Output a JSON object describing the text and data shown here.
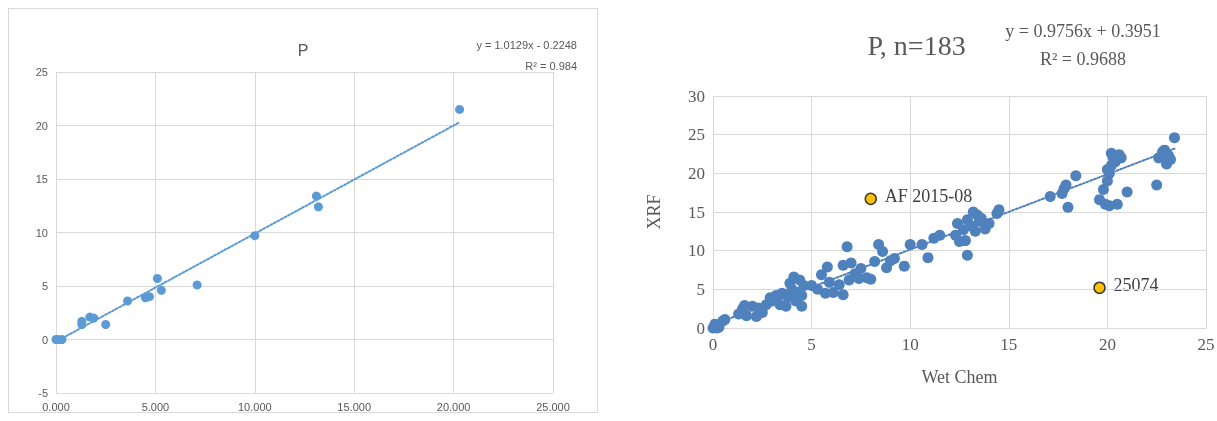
{
  "chart_data": [
    {
      "type": "scatter",
      "title": "P",
      "annotations": [
        "y = 1.0129x - 0.2248",
        "R² = 0.984"
      ],
      "xlim": [
        0,
        25
      ],
      "xticks": [
        {
          "value": 0,
          "label": "0.000"
        },
        {
          "value": 5,
          "label": "5.000"
        },
        {
          "value": 10,
          "label": "10.000"
        },
        {
          "value": 15,
          "label": "15.000"
        },
        {
          "value": 20,
          "label": "20.000"
        },
        {
          "value": 25,
          "label": "25.000"
        }
      ],
      "ylim": [
        -5,
        25
      ],
      "yticks": [
        -5,
        0,
        5,
        10,
        15,
        20,
        25
      ],
      "grid": true,
      "marker": "circle",
      "series": [
        {
          "color": "#5b9bd5",
          "x": [
            0,
            0.1,
            0.3,
            1.3,
            1.3,
            1.7,
            1.9,
            2.5,
            3.6,
            4.5,
            4.7,
            5.1,
            5.3,
            7.1,
            10,
            13.1,
            13.2,
            20.3
          ],
          "values": [
            0,
            0,
            0,
            1.7,
            1.4,
            2.1,
            2.0,
            1.4,
            3.6,
            3.9,
            4.0,
            5.7,
            4.6,
            5.1,
            9.7,
            13.4,
            12.4,
            21.5
          ]
        },
        {
          "type": "line",
          "color": "#5b9bd5",
          "line_style": "dotted",
          "marker": "none",
          "x": [
            0,
            20.3
          ],
          "values": [
            -0.2,
            20.3
          ]
        }
      ]
    },
    {
      "type": "scatter",
      "title": "P, n=183",
      "xlabel": "Wet Chem",
      "ylabel": "XRF",
      "annotations": [
        "y = 0.9756x + 0.3951",
        "R² = 0.9688",
        {
          "text": "AF 2015-08",
          "x": 8,
          "y": 16.7
        },
        {
          "text": "25074",
          "x": 19.6,
          "y": 5.2
        }
      ],
      "xlim": [
        0,
        25
      ],
      "xticks": [
        0,
        5,
        10,
        15,
        20,
        25
      ],
      "ylim": [
        0,
        30
      ],
      "yticks": [
        0,
        5,
        10,
        15,
        20,
        25,
        30
      ],
      "grid": true,
      "marker": "circle",
      "series": [
        {
          "color": "#4f81bd",
          "x": [
            0,
            0.2,
            0.3,
            0.1,
            0.5,
            0.6,
            1.3,
            1.5,
            1.6,
            2.0,
            2.2,
            2.3,
            1.7,
            2.5,
            2.7,
            3.0,
            3.2,
            3.4,
            3.5,
            3.7,
            3.8,
            4.0,
            4.1,
            4.2,
            4.3,
            4.4,
            4.5,
            4.6,
            4.5,
            3.9,
            2.9,
            5.0,
            5.3,
            5.5,
            5.7,
            5.8,
            5.9,
            6.1,
            6.4,
            6.6,
            6.6,
            6.8,
            6.9,
            7.0,
            7.2,
            7.4,
            7.5,
            7.8,
            8.0,
            8.2,
            8.4,
            8.6,
            8.8,
            9.0,
            9.2,
            9.7,
            10.0,
            10.6,
            10.9,
            11.2,
            11.5,
            12.3,
            12.4,
            12.5,
            12.7,
            12.9,
            12.9,
            13.1,
            13.3,
            13.4,
            13.5,
            13.6,
            13.8,
            14.0,
            14.4,
            14.5,
            12.8,
            13.2,
            17.1,
            17.7,
            17.8,
            17.9,
            18.0,
            18.4,
            19.6,
            19.8,
            19.9,
            20.0,
            20.1,
            20.2,
            20.3,
            20.2,
            20.4,
            20.6,
            20.7,
            20.5,
            20.0,
            21.0,
            20.1,
            22.5,
            22.6,
            22.8,
            23.0,
            23.1,
            23.2,
            23.4,
            22.9
          ],
          "values": [
            0,
            0,
            0.1,
            0.5,
            0.9,
            1.1,
            1.8,
            2.5,
            2.9,
            2.8,
            1.5,
            2.6,
            1.6,
            2.0,
            3.0,
            3.5,
            4.2,
            3.0,
            4.5,
            2.8,
            4.0,
            5.0,
            6.6,
            3.5,
            4.6,
            6.2,
            4.2,
            5.5,
            2.8,
            5.8,
            3.9,
            5.5,
            5.0,
            6.9,
            4.5,
            7.9,
            5.9,
            4.6,
            5.6,
            4.3,
            8.1,
            10.5,
            6.2,
            8.4,
            7.0,
            6.4,
            7.7,
            6.5,
            6.3,
            8.6,
            10.8,
            9.9,
            7.8,
            8.7,
            9.0,
            8.0,
            10.8,
            10.8,
            9.1,
            11.6,
            12.0,
            12.0,
            13.5,
            11.2,
            12.7,
            9.4,
            14.0,
            13.2,
            12.5,
            14.6,
            13.8,
            14.2,
            12.8,
            13.5,
            14.8,
            15.3,
            11.3,
            15.0,
            17.0,
            17.4,
            18.0,
            18.5,
            15.6,
            19.7,
            16.6,
            17.9,
            16.0,
            19.0,
            20.0,
            21.0,
            22.0,
            22.6,
            21.5,
            22.4,
            22.0,
            16.0,
            20.5,
            17.6,
            15.8,
            18.5,
            22.0,
            22.8,
            21.2,
            22.3,
            21.8,
            24.6,
            23.0
          ]
        },
        {
          "color": "#ffc000",
          "x": [
            8,
            19.6
          ],
          "values": [
            16.7,
            5.2
          ]
        },
        {
          "type": "line",
          "color": "#4f81bd",
          "line_style": "dotted",
          "marker": "none",
          "x": [
            0,
            23.4
          ],
          "values": [
            0.4,
            23.2
          ]
        }
      ]
    }
  ]
}
